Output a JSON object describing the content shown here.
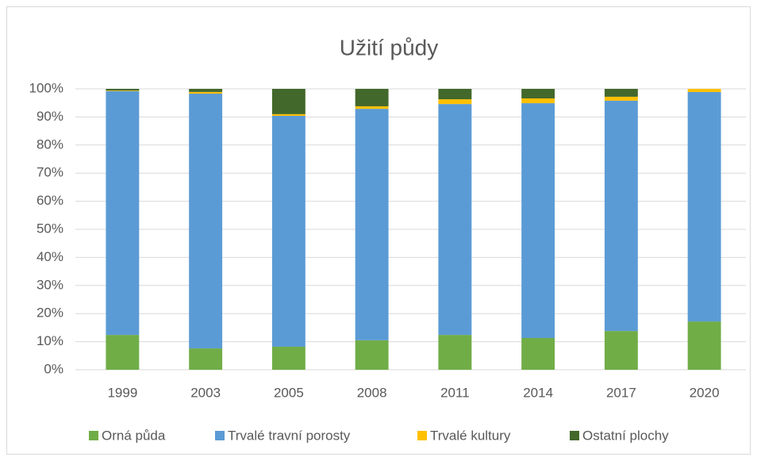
{
  "chart_data": {
    "type": "stacked_bar",
    "title": "Užití půdy",
    "categories": [
      "1999",
      "2003",
      "2005",
      "2008",
      "2011",
      "2014",
      "2017",
      "2020"
    ],
    "series": [
      {
        "name": "Orná půda",
        "color": "#70ad47",
        "values": [
          12.4,
          7.6,
          8.2,
          10.5,
          12.4,
          11.3,
          13.8,
          17.2
        ]
      },
      {
        "name": "Trvalé travní porosty",
        "color": "#5b9bd5",
        "values": [
          86.8,
          90.7,
          82.2,
          82.4,
          82.2,
          83.6,
          82.0,
          81.7
        ]
      },
      {
        "name": "Trvalé kultury",
        "color": "#ffc000",
        "values": [
          0.2,
          0.6,
          0.6,
          0.9,
          1.7,
          1.7,
          1.4,
          1.1
        ]
      },
      {
        "name": "Ostatní plochy",
        "color": "#43682b",
        "values": [
          0.6,
          1.1,
          9.0,
          6.2,
          3.7,
          3.4,
          2.8,
          0
        ]
      }
    ],
    "ylim": [
      0,
      100
    ],
    "yticks": [
      {
        "value": 0,
        "label": "0%"
      },
      {
        "value": 10,
        "label": "10%"
      },
      {
        "value": 20,
        "label": "20%"
      },
      {
        "value": 30,
        "label": "30%"
      },
      {
        "value": 40,
        "label": "40%"
      },
      {
        "value": 50,
        "label": "50%"
      },
      {
        "value": 60,
        "label": "60%"
      },
      {
        "value": 70,
        "label": "70%"
      },
      {
        "value": 80,
        "label": "80%"
      },
      {
        "value": 90,
        "label": "90%"
      },
      {
        "value": 100,
        "label": "100%"
      }
    ],
    "grid": true,
    "legend": "bottom"
  }
}
